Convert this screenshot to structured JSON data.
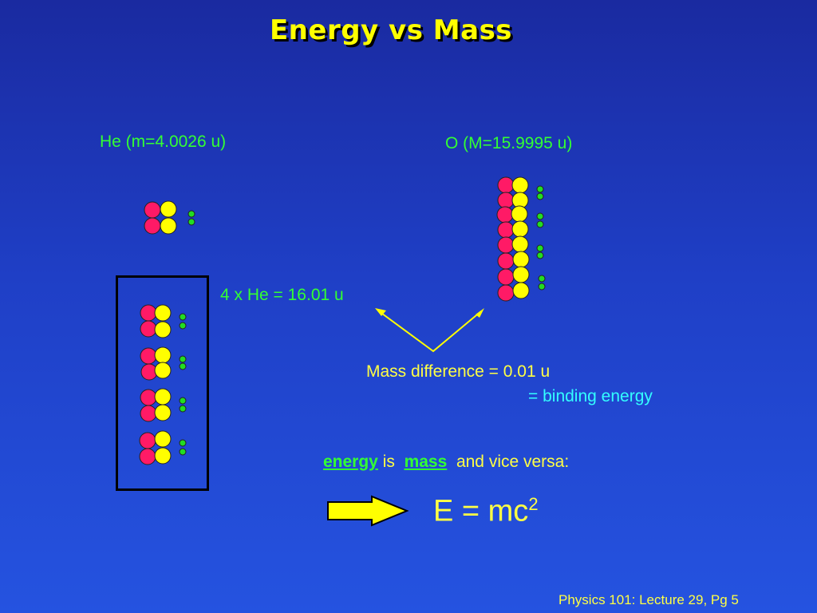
{
  "slide": {
    "title": "Energy vs Mass",
    "he_label": "He (m=4.0026 u)",
    "o_label": "O (M=15.9995 u)",
    "four_he_label": "4 x He = 16.01 u",
    "mass_difference": "Mass difference = 0.01 u",
    "binding_energy": "= binding energy",
    "energy_word": "energy",
    "is_word": "is",
    "mass_word": "mass",
    "vice_versa": "and vice versa:",
    "equation_base": "E = mc",
    "equation_exp": "2",
    "footer": "Physics 101: Lecture 29, Pg 5"
  },
  "colors": {
    "proton": "#ff1a66",
    "neutron": "#ffff00",
    "electron": "#22dd22",
    "arrow": "#ffff00"
  },
  "icons": {
    "he_atom": "helium-atom-icon",
    "o_atom": "oxygen-atom-icon",
    "right_arrow": "right-arrow-icon"
  }
}
